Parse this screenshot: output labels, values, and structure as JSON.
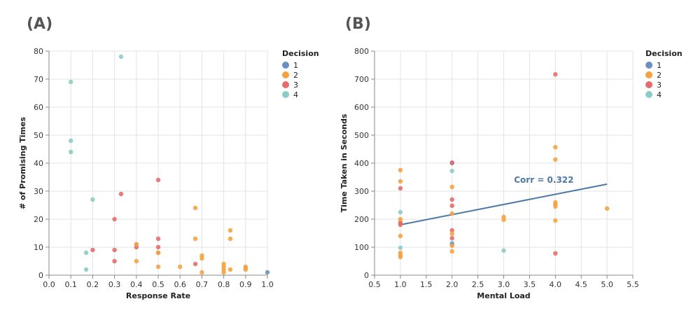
{
  "colors": {
    "1": "#6b8fbf",
    "2": "#f5a243",
    "3": "#e46c6f",
    "4": "#8ecbc7",
    "regression": "#4c78a8",
    "grid": "#e3e3e3",
    "axis": "#888888"
  },
  "chart_data": [
    {
      "type": "scatter",
      "panel_label": "(A)",
      "xlabel": "Response Rate",
      "ylabel": "# of Promising Times",
      "xlim": [
        0,
        1.0
      ],
      "ylim": [
        0,
        80
      ],
      "xticks": [
        0.0,
        0.1,
        0.2,
        0.3,
        0.4,
        0.5,
        0.6,
        0.7,
        0.8,
        0.9,
        1.0
      ],
      "xtick_labels": [
        "0.0",
        "0.1",
        "0.2",
        "0.3",
        "0.4",
        "0.5",
        "0.6",
        "0.7",
        "0.8",
        "0.9",
        "1.0"
      ],
      "yticks": [
        0,
        10,
        20,
        30,
        40,
        50,
        60,
        70,
        80
      ],
      "ytick_labels": [
        "0",
        "10",
        "20",
        "30",
        "40",
        "50",
        "60",
        "70",
        "80"
      ],
      "legend": {
        "title": "Decision",
        "entries": [
          "1",
          "2",
          "3",
          "4"
        ]
      },
      "points": [
        {
          "x": 0.1,
          "y": 69,
          "d": "4"
        },
        {
          "x": 0.1,
          "y": 48,
          "d": "4"
        },
        {
          "x": 0.1,
          "y": 44,
          "d": "4"
        },
        {
          "x": 0.17,
          "y": 8,
          "d": "4"
        },
        {
          "x": 0.17,
          "y": 2,
          "d": "4"
        },
        {
          "x": 0.2,
          "y": 27,
          "d": "4"
        },
        {
          "x": 0.33,
          "y": 78,
          "d": "4"
        },
        {
          "x": 0.2,
          "y": 9,
          "d": "3"
        },
        {
          "x": 0.3,
          "y": 20,
          "d": "3"
        },
        {
          "x": 0.3,
          "y": 9,
          "d": "3"
        },
        {
          "x": 0.3,
          "y": 5,
          "d": "3"
        },
        {
          "x": 0.33,
          "y": 29,
          "d": "3"
        },
        {
          "x": 0.4,
          "y": 11,
          "d": "3"
        },
        {
          "x": 0.4,
          "y": 10,
          "d": "3"
        },
        {
          "x": 0.5,
          "y": 34,
          "d": "3"
        },
        {
          "x": 0.5,
          "y": 13,
          "d": "3"
        },
        {
          "x": 0.5,
          "y": 10,
          "d": "3"
        },
        {
          "x": 0.5,
          "y": 8,
          "d": "3"
        },
        {
          "x": 0.67,
          "y": 4,
          "d": "3"
        },
        {
          "x": 0.4,
          "y": 11,
          "d": "2"
        },
        {
          "x": 0.4,
          "y": 5,
          "d": "2"
        },
        {
          "x": 0.5,
          "y": 8,
          "d": "2"
        },
        {
          "x": 0.5,
          "y": 3,
          "d": "2"
        },
        {
          "x": 0.6,
          "y": 3,
          "d": "2"
        },
        {
          "x": 0.67,
          "y": 24,
          "d": "2"
        },
        {
          "x": 0.67,
          "y": 13,
          "d": "2"
        },
        {
          "x": 0.7,
          "y": 7,
          "d": "2"
        },
        {
          "x": 0.7,
          "y": 6,
          "d": "2"
        },
        {
          "x": 0.7,
          "y": 1,
          "d": "2"
        },
        {
          "x": 0.8,
          "y": 4,
          "d": "2"
        },
        {
          "x": 0.8,
          "y": 3,
          "d": "2"
        },
        {
          "x": 0.8,
          "y": 2,
          "d": "2"
        },
        {
          "x": 0.8,
          "y": 1,
          "d": "2"
        },
        {
          "x": 0.83,
          "y": 16,
          "d": "2"
        },
        {
          "x": 0.83,
          "y": 13,
          "d": "2"
        },
        {
          "x": 0.83,
          "y": 2,
          "d": "2"
        },
        {
          "x": 0.9,
          "y": 3,
          "d": "2"
        },
        {
          "x": 0.9,
          "y": 2.5,
          "d": "2"
        },
        {
          "x": 0.9,
          "y": 2,
          "d": "2"
        },
        {
          "x": 1.0,
          "y": 1,
          "d": "1"
        }
      ]
    },
    {
      "type": "scatter",
      "panel_label": "(B)",
      "xlabel": "Mental Load",
      "ylabel": "Time Taken in Seconds",
      "xlim": [
        0.5,
        5.5
      ],
      "ylim": [
        0,
        800
      ],
      "xticks": [
        0.5,
        1.0,
        1.5,
        2.0,
        2.5,
        3.0,
        3.5,
        4.0,
        4.5,
        5.0,
        5.5
      ],
      "xtick_labels": [
        "0.5",
        "1.0",
        "1.5",
        "2.0",
        "2.5",
        "3.0",
        "3.5",
        "4.0",
        "4.5",
        "5.0",
        "5.5"
      ],
      "yticks": [
        0,
        100,
        200,
        300,
        400,
        500,
        600,
        700,
        800
      ],
      "ytick_labels": [
        "0",
        "100",
        "200",
        "300",
        "400",
        "500",
        "600",
        "700",
        "800"
      ],
      "legend": {
        "title": "Decision",
        "entries": [
          "1",
          "2",
          "3",
          "4"
        ]
      },
      "regression": {
        "x1": 1.0,
        "y1": 180,
        "x2": 5.0,
        "y2": 325
      },
      "annotation": {
        "text": "Corr = 0.322",
        "x": 3.2,
        "y": 325
      },
      "points": [
        {
          "x": 1,
          "y": 375,
          "d": "2"
        },
        {
          "x": 1,
          "y": 335,
          "d": "2"
        },
        {
          "x": 1,
          "y": 310,
          "d": "3"
        },
        {
          "x": 1,
          "y": 225,
          "d": "4"
        },
        {
          "x": 1,
          "y": 200,
          "d": "2"
        },
        {
          "x": 1,
          "y": 190,
          "d": "2"
        },
        {
          "x": 1,
          "y": 185,
          "d": "3"
        },
        {
          "x": 1,
          "y": 180,
          "d": "3"
        },
        {
          "x": 1,
          "y": 140,
          "d": "2"
        },
        {
          "x": 1,
          "y": 98,
          "d": "4"
        },
        {
          "x": 1,
          "y": 80,
          "d": "2"
        },
        {
          "x": 1,
          "y": 72,
          "d": "2"
        },
        {
          "x": 1,
          "y": 65,
          "d": "2"
        },
        {
          "x": 2,
          "y": 400,
          "d": "1"
        },
        {
          "x": 2,
          "y": 402,
          "d": "3"
        },
        {
          "x": 2,
          "y": 372,
          "d": "4"
        },
        {
          "x": 2,
          "y": 315,
          "d": "2"
        },
        {
          "x": 2,
          "y": 270,
          "d": "3"
        },
        {
          "x": 2,
          "y": 248,
          "d": "3"
        },
        {
          "x": 2,
          "y": 220,
          "d": "2"
        },
        {
          "x": 2,
          "y": 160,
          "d": "3"
        },
        {
          "x": 2,
          "y": 148,
          "d": "2"
        },
        {
          "x": 2,
          "y": 132,
          "d": "3"
        },
        {
          "x": 2,
          "y": 115,
          "d": "4"
        },
        {
          "x": 2,
          "y": 110,
          "d": "1"
        },
        {
          "x": 2,
          "y": 105,
          "d": "2"
        },
        {
          "x": 2,
          "y": 85,
          "d": "2"
        },
        {
          "x": 3,
          "y": 208,
          "d": "2"
        },
        {
          "x": 3,
          "y": 198,
          "d": "2"
        },
        {
          "x": 3,
          "y": 88,
          "d": "4"
        },
        {
          "x": 4,
          "y": 717,
          "d": "3"
        },
        {
          "x": 4,
          "y": 457,
          "d": "2"
        },
        {
          "x": 4,
          "y": 413,
          "d": "2"
        },
        {
          "x": 4,
          "y": 260,
          "d": "2"
        },
        {
          "x": 4,
          "y": 253,
          "d": "2"
        },
        {
          "x": 4,
          "y": 245,
          "d": "2"
        },
        {
          "x": 4,
          "y": 195,
          "d": "2"
        },
        {
          "x": 4,
          "y": 78,
          "d": "3"
        },
        {
          "x": 5,
          "y": 238,
          "d": "2"
        }
      ]
    }
  ]
}
